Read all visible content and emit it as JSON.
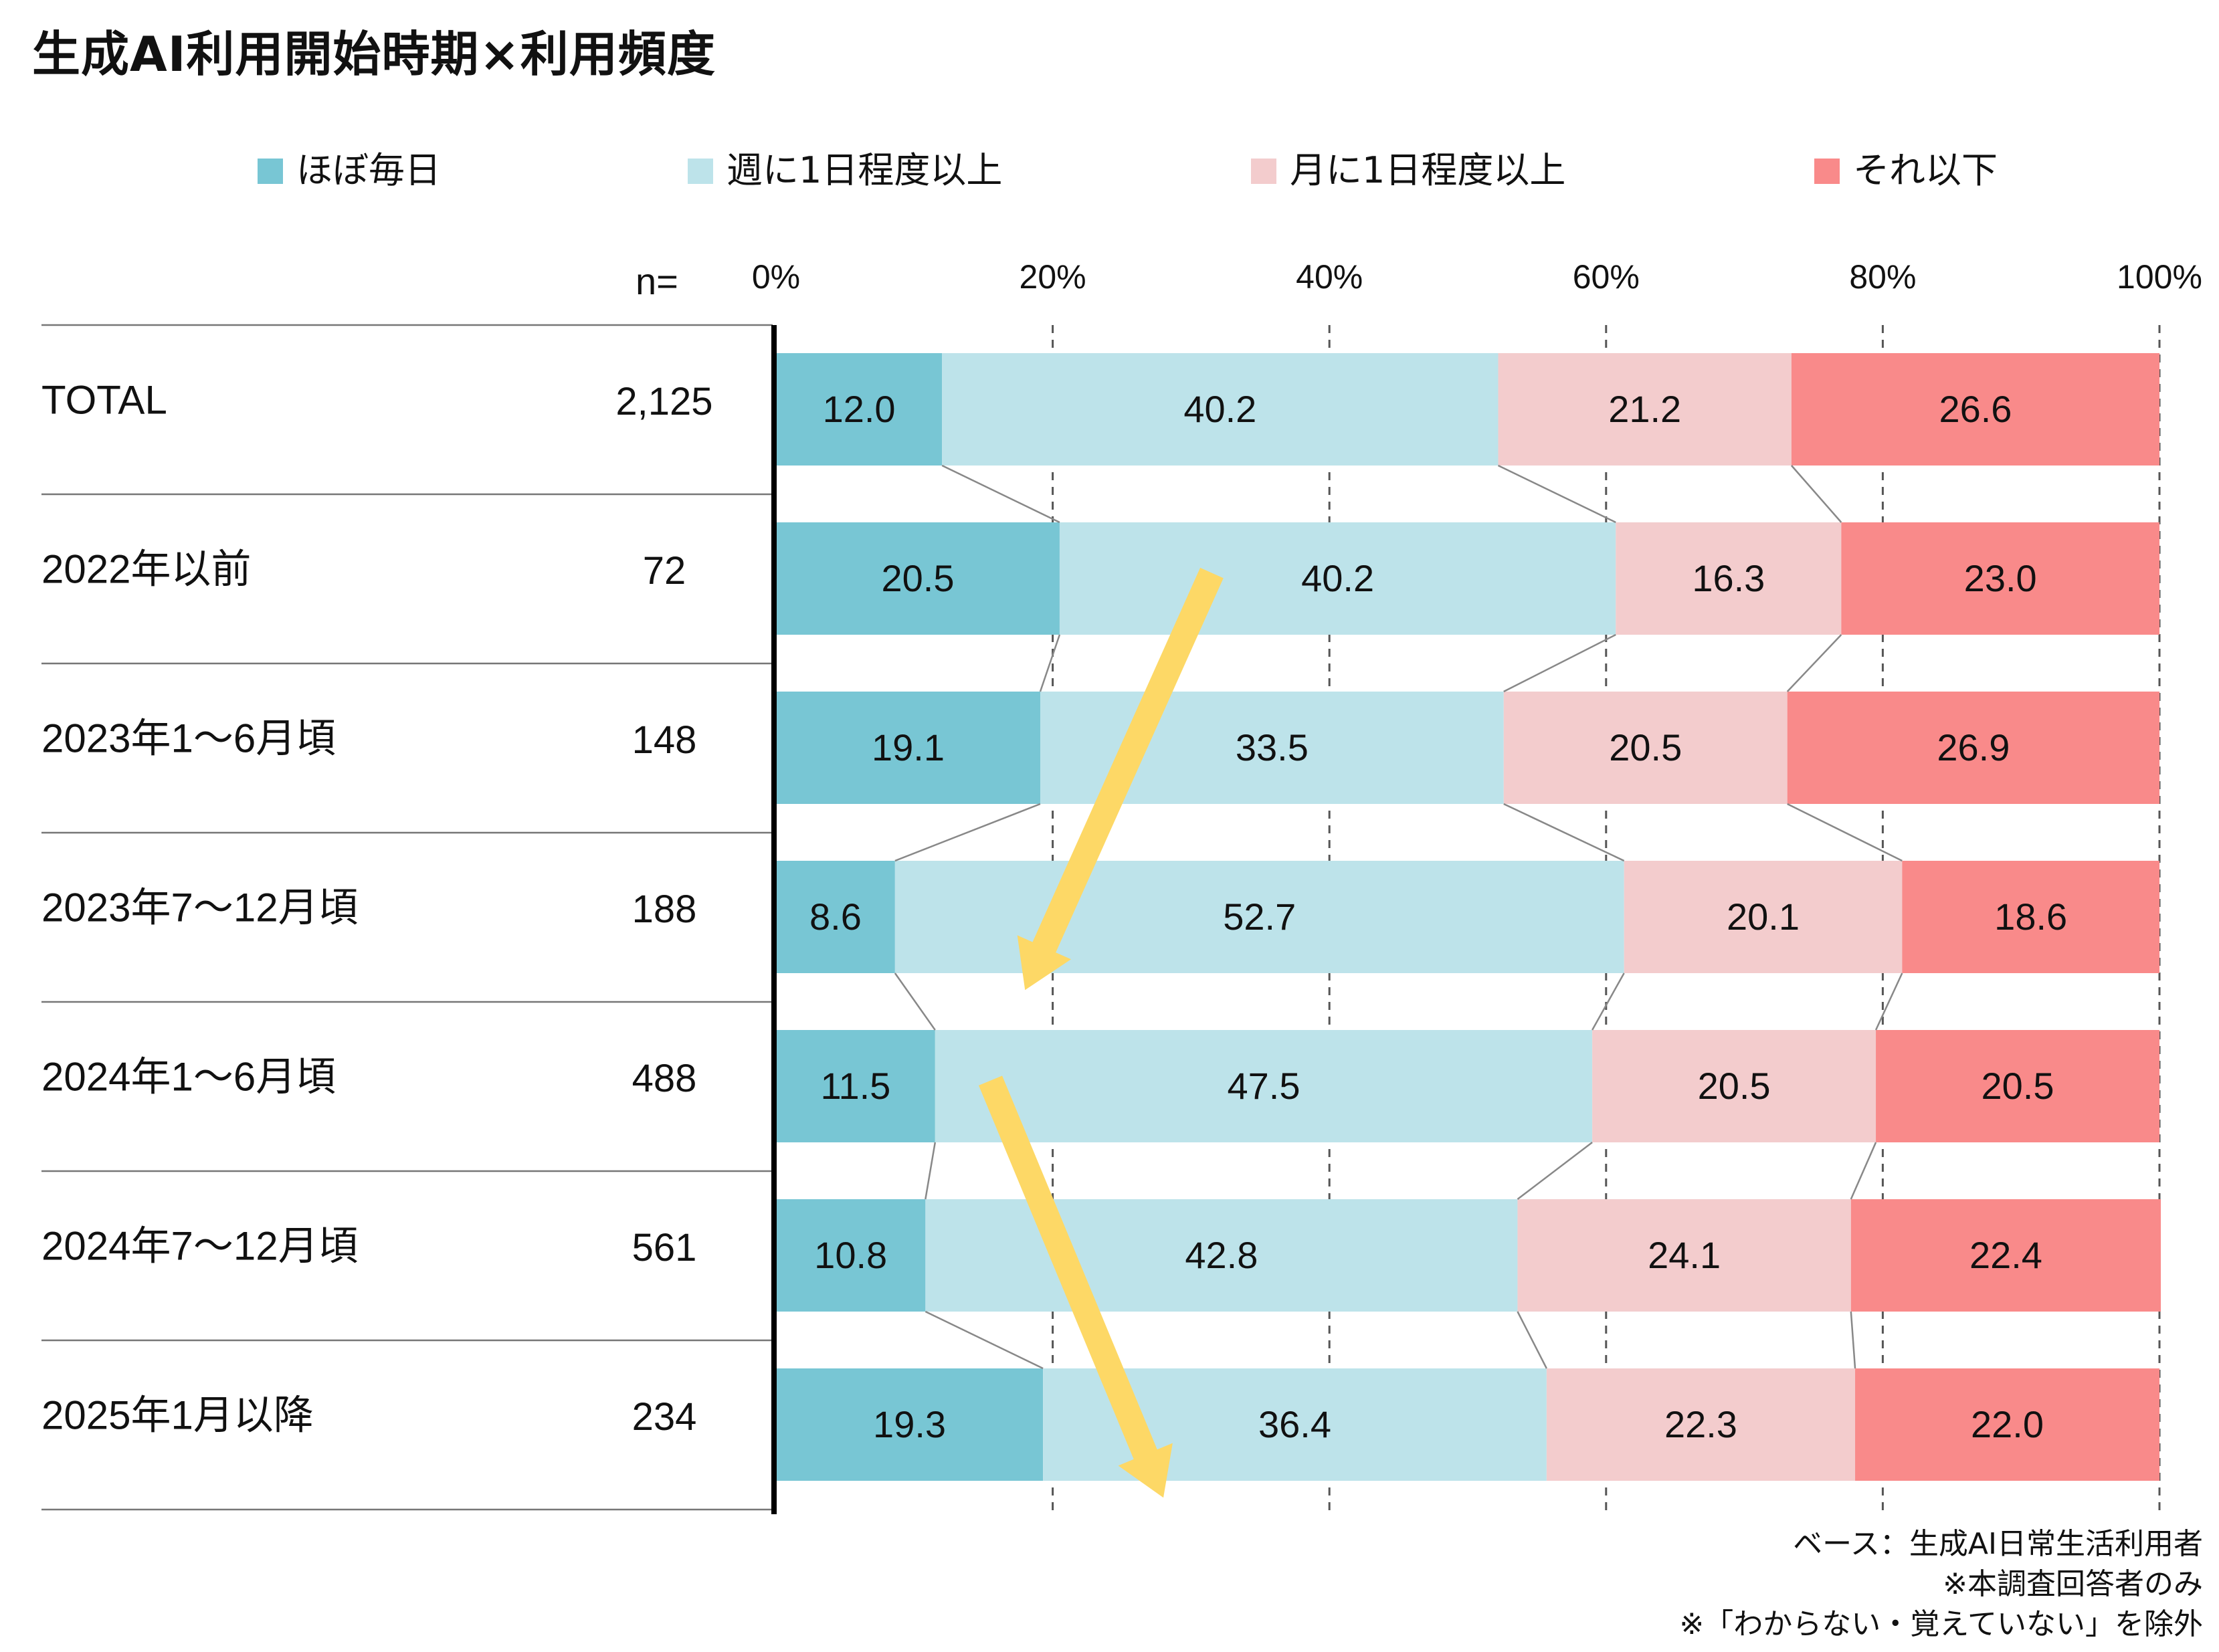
{
  "title": "生成AI利用開始時期×利用頻度",
  "n_header": "n=",
  "colors": {
    "ほぼ毎日": "#78c6d4",
    "週に1日程度以上": "#bde3ea",
    "月に1日程度以上": "#f3cccd",
    "それ以下": "#f98a8a",
    "arrow": "#fdd866"
  },
  "footnotes": [
    "ベース：生成AI日常生活利用者",
    "※本調査回答者のみ",
    "※「わからない・覚えていない」を除外"
  ],
  "chart_data": {
    "type": "bar",
    "orientation": "horizontal",
    "stacked": true,
    "percent": true,
    "xlim": [
      0,
      100
    ],
    "x_ticks": [
      "0%",
      "20%",
      "40%",
      "60%",
      "80%",
      "100%"
    ],
    "grid": "vertical dashed",
    "legend_position": "top",
    "categories": [
      "TOTAL",
      "2022年以前",
      "2023年1～6月頃",
      "2023年7～12月頃",
      "2024年1～6月頃",
      "2024年7～12月頃",
      "2025年1月以降"
    ],
    "n": [
      "2,125",
      "72",
      "148",
      "188",
      "488",
      "561",
      "234"
    ],
    "series": [
      {
        "name": "ほぼ毎日",
        "values": [
          12.0,
          20.5,
          19.1,
          8.6,
          11.5,
          10.8,
          19.3
        ]
      },
      {
        "name": "週に1日程度以上",
        "values": [
          40.2,
          40.2,
          33.5,
          52.7,
          47.5,
          42.8,
          36.4
        ]
      },
      {
        "name": "月に1日程度以上",
        "values": [
          21.2,
          16.3,
          20.5,
          20.1,
          20.5,
          24.1,
          22.3
        ]
      },
      {
        "name": "それ以下",
        "values": [
          26.6,
          23.0,
          26.9,
          18.6,
          20.5,
          22.4,
          22.0
        ]
      }
    ],
    "annotations": [
      {
        "type": "arrow",
        "from": {
          "row": 1,
          "x": 31.5
        },
        "to": {
          "row": 3,
          "x": 18
        }
      },
      {
        "type": "arrow",
        "from": {
          "row": 4,
          "x": 15.5
        },
        "to": {
          "row": 6,
          "x": 28
        }
      }
    ]
  }
}
